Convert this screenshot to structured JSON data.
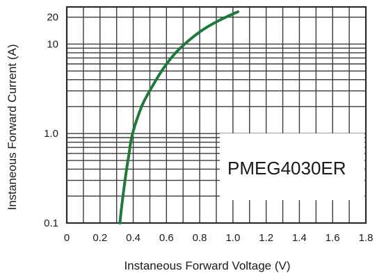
{
  "chart_data": {
    "type": "line",
    "xlabel": "Instaneous Forward Voltage (V)",
    "ylabel": "Instaneous Forward Current  (A)",
    "x_ticks": [
      "0",
      "0.2",
      "0.4",
      "0.6",
      "0.8",
      "1.0",
      "1.2",
      "1.4",
      "1.6",
      "1.8"
    ],
    "y_ticks": [
      {
        "value": 0.1,
        "label": "0.1"
      },
      {
        "value": 1.0,
        "label": "1.0"
      },
      {
        "value": 10,
        "label": "10"
      },
      {
        "value": 20,
        "label": "20"
      }
    ],
    "xlim": [
      0,
      1.8
    ],
    "ylim": [
      0.1,
      26
    ],
    "y_scale": "log",
    "grid": true,
    "annotation": "PMEG4030ER",
    "series": [
      {
        "color": "#1e7a3c",
        "x": [
          0.32,
          0.33,
          0.345,
          0.36,
          0.375,
          0.39,
          0.42,
          0.46,
          0.52,
          0.58,
          0.65,
          0.73,
          0.82,
          0.92,
          1.03
        ],
        "y": [
          0.1,
          0.15,
          0.25,
          0.4,
          0.6,
          0.9,
          1.4,
          2.2,
          3.5,
          5.3,
          7.8,
          10.8,
          14.5,
          18.5,
          23
        ]
      }
    ]
  }
}
